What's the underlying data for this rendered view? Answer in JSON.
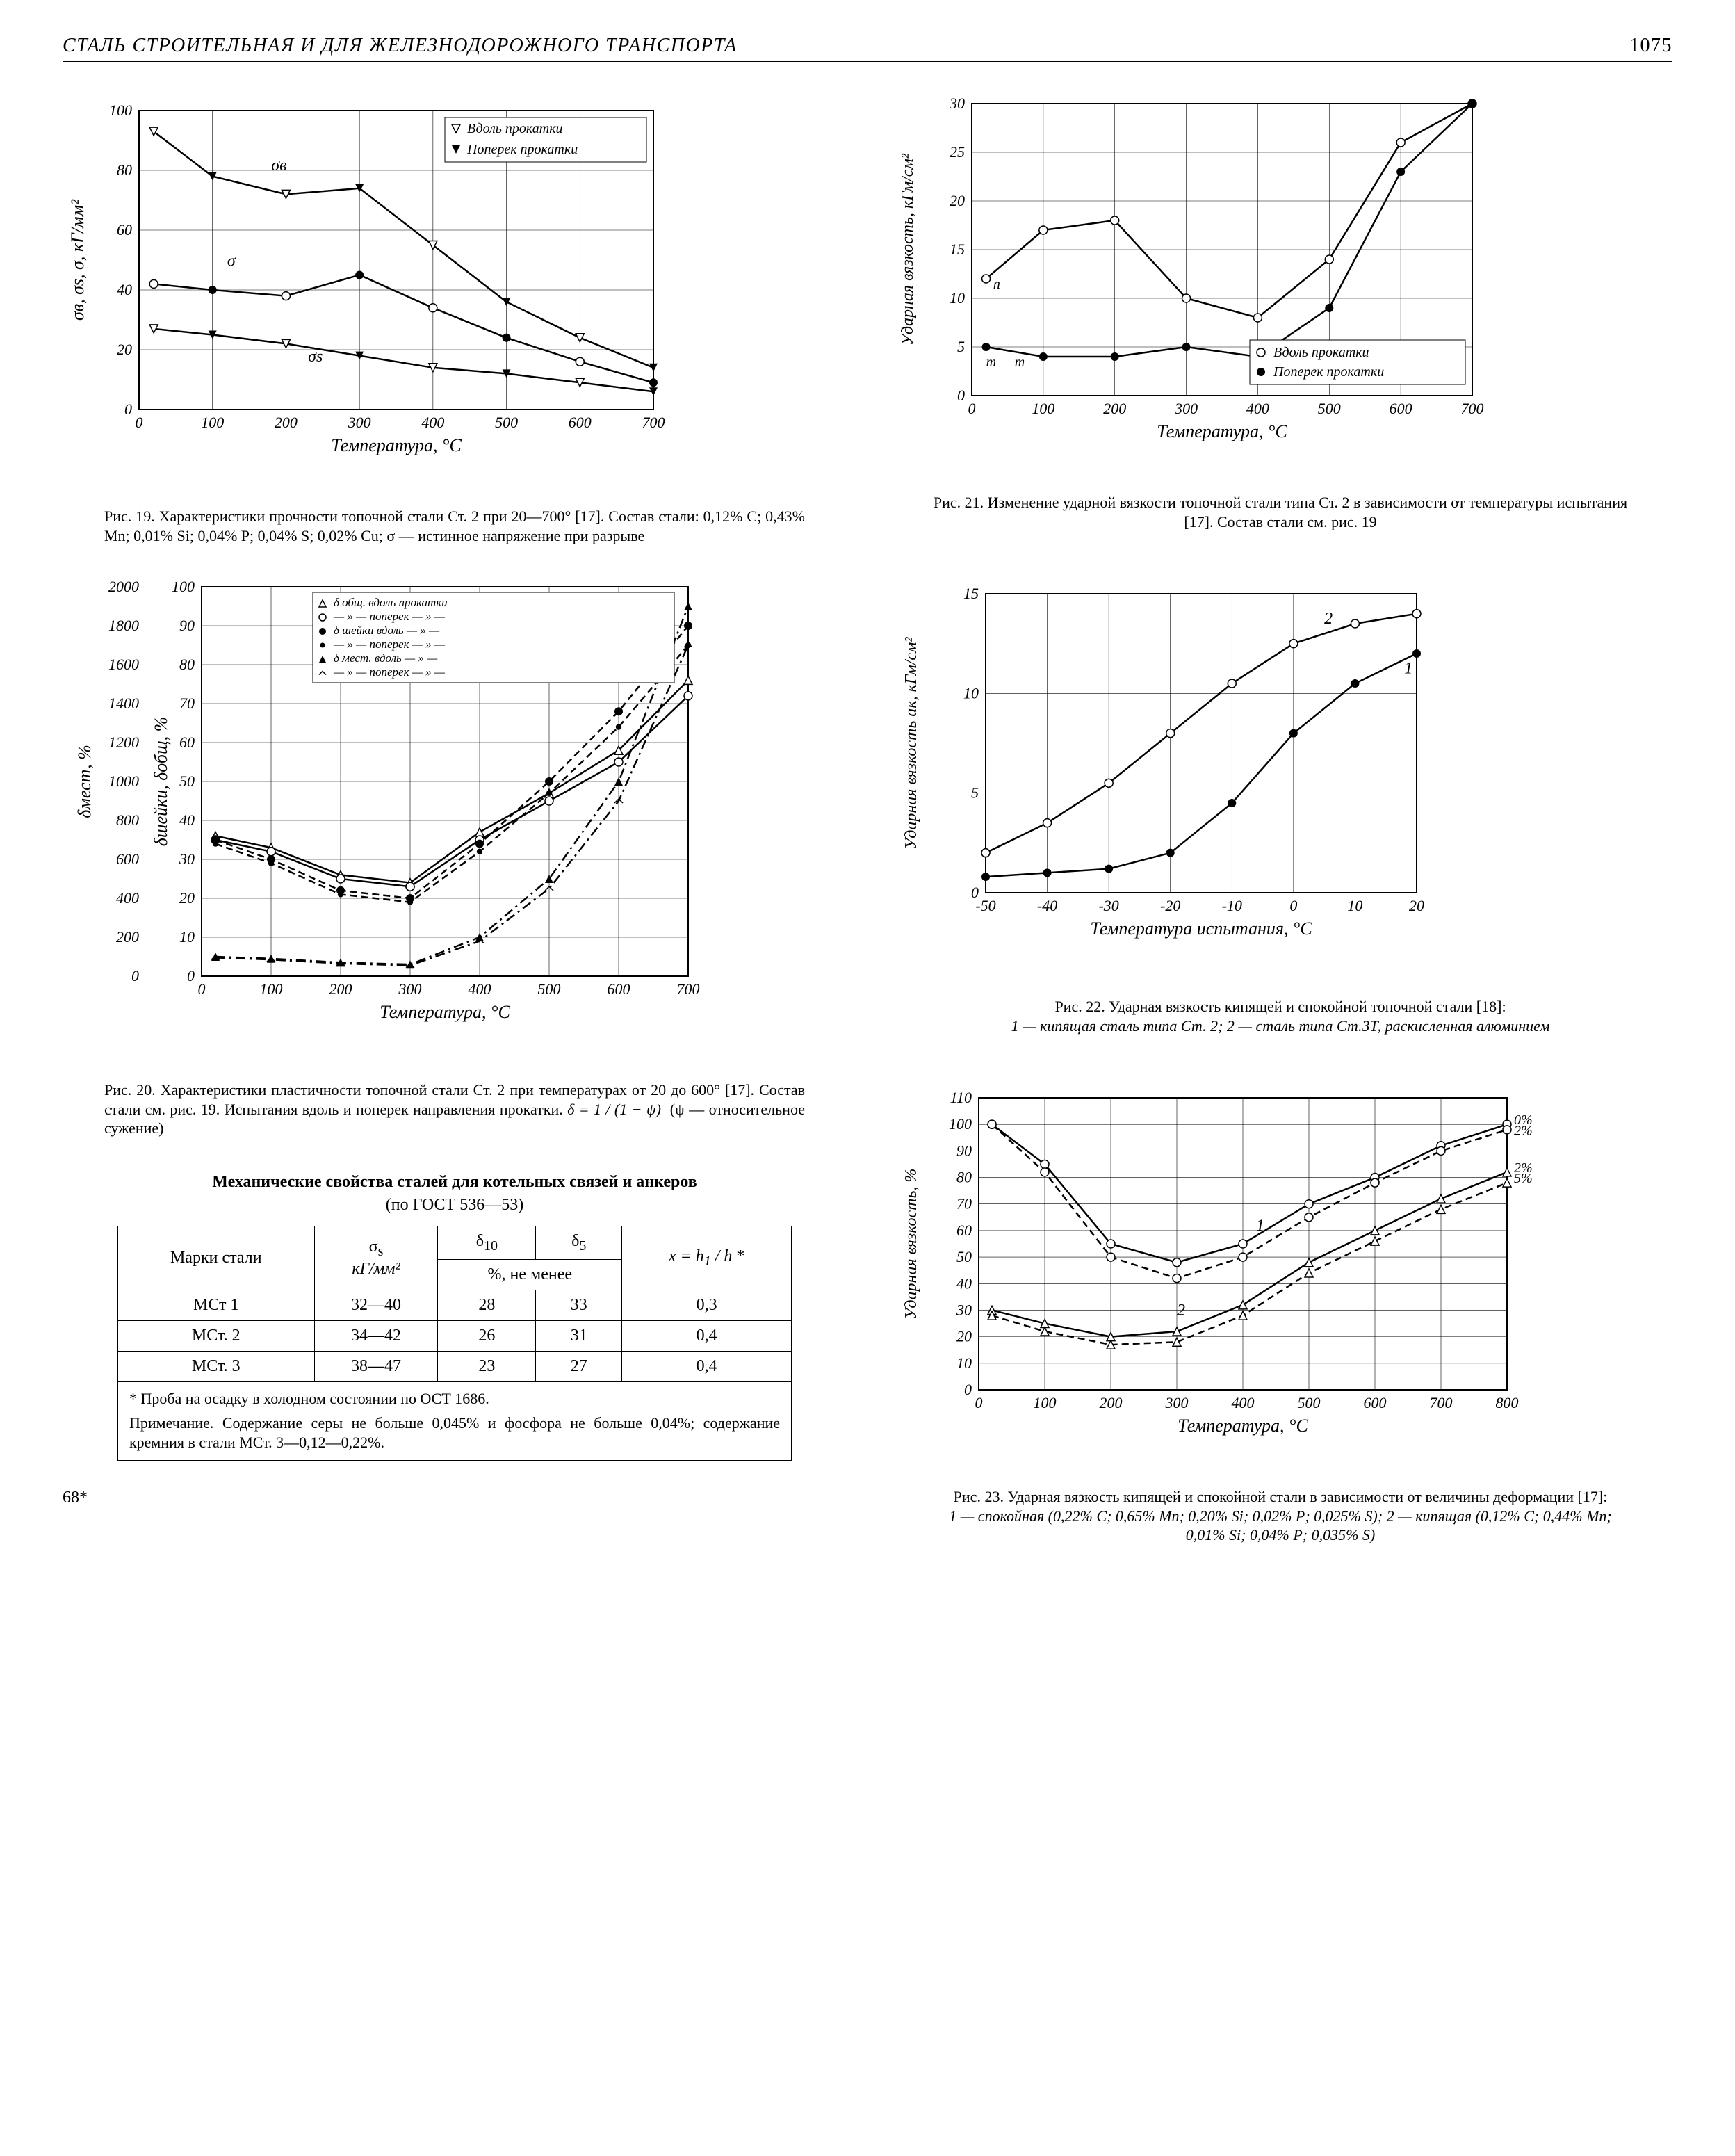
{
  "header": {
    "title": "СТАЛЬ СТРОИТЕЛЬНАЯ И ДЛЯ ЖЕЛЕЗНОДОРОЖНОГО ТРАНСПОРТА",
    "page_number": "1075"
  },
  "footer_sig": "68*",
  "fig19": {
    "type": "line",
    "x_label": "Температура, °С",
    "y_label": "σв, σs, σ, кГ/мм²",
    "xlim": [
      0,
      700
    ],
    "xtick_step": 100,
    "ylim": [
      0,
      100
    ],
    "ytick_step": 20,
    "legend": [
      "Вдоль прокатки",
      "Поперек прокатки"
    ],
    "legend_markers": [
      "triangle-down-open",
      "triangle-down-filled"
    ],
    "curve_labels": [
      "σв",
      "σ",
      "σs"
    ],
    "series_sigma_v": {
      "x": [
        20,
        100,
        200,
        300,
        400,
        500,
        600,
        700
      ],
      "y": [
        93,
        78,
        72,
        74,
        55,
        36,
        24,
        14
      ],
      "markers": "mixed"
    },
    "series_sigma": {
      "x": [
        20,
        100,
        200,
        300,
        400,
        500,
        600,
        700
      ],
      "y": [
        42,
        40,
        38,
        45,
        34,
        24,
        16,
        9
      ],
      "markers": "mixed"
    },
    "series_sigma_s": {
      "x": [
        20,
        100,
        200,
        300,
        400,
        500,
        600,
        700
      ],
      "y": [
        27,
        25,
        22,
        18,
        14,
        12,
        9,
        6
      ],
      "markers": "mixed"
    },
    "colors": {
      "line": "#000000",
      "bg": "#ffffff",
      "grid": "#000000"
    },
    "line_width": 2,
    "caption": "Рис. 19. Характеристики прочности топочной стали Ст. 2 при 20—700° [17]. Состав стали: 0,12% С; 0,43% Mn; 0,01% Si; 0,04% P; 0,04% S; 0,02% Cu; σ — истинное напряжение при разрыве"
  },
  "fig20": {
    "type": "line",
    "x_label": "Температура, °С",
    "y_left_label": "δмест, %",
    "y_right_label": "δшейки, δобщ, %",
    "xlim": [
      0,
      700
    ],
    "xtick_step": 100,
    "y_left": {
      "lim": [
        0,
        2000
      ],
      "tick_step": 200
    },
    "y_right": {
      "lim": [
        0,
        100
      ],
      "tick_step": 10
    },
    "legend": [
      "δ общ. вдоль прокатки",
      "— » — поперек — » —",
      "δ шейки вдоль — » —",
      "— » — поперек — » —",
      "δ мест. вдоль — » —",
      "— » — поперек — » —"
    ],
    "legend_markers": [
      "triangle-open",
      "circle-open",
      "circle-filled",
      "bullet",
      "triangle-filled",
      "caret"
    ],
    "series": [
      {
        "name": "d_obshch_vdol",
        "x": [
          20,
          100,
          200,
          300,
          400,
          500,
          600,
          700
        ],
        "y_right": [
          36,
          33,
          26,
          24,
          37,
          47,
          58,
          76
        ],
        "style": "solid",
        "marker": "triangle-open"
      },
      {
        "name": "d_obshch_poper",
        "x": [
          20,
          100,
          200,
          300,
          400,
          500,
          600,
          700
        ],
        "y_right": [
          35,
          32,
          25,
          23,
          35,
          45,
          55,
          72
        ],
        "style": "solid",
        "marker": "circle-open"
      },
      {
        "name": "d_sheiki_vdol",
        "x": [
          20,
          100,
          200,
          300,
          400,
          500,
          600,
          700
        ],
        "y_right": [
          35,
          30,
          22,
          20,
          34,
          50,
          68,
          90
        ],
        "style": "dashed",
        "marker": "circle-filled"
      },
      {
        "name": "d_sheiki_poper",
        "x": [
          20,
          100,
          200,
          300,
          400,
          500,
          600,
          700
        ],
        "y_right": [
          34,
          29,
          21,
          19,
          32,
          47,
          64,
          85
        ],
        "style": "dashed",
        "marker": "bullet"
      },
      {
        "name": "d_mest_vdol",
        "x": [
          20,
          100,
          200,
          300,
          400,
          500,
          600,
          700
        ],
        "y_left": [
          100,
          90,
          70,
          60,
          200,
          500,
          1000,
          1900
        ],
        "style": "dash-dot",
        "marker": "triangle-filled"
      },
      {
        "name": "d_mest_poper",
        "x": [
          20,
          100,
          200,
          300,
          400,
          500,
          600,
          700
        ],
        "y_left": [
          95,
          85,
          65,
          55,
          180,
          450,
          900,
          1700
        ],
        "style": "dash-dot",
        "marker": "caret"
      }
    ],
    "colors": {
      "line": "#000000",
      "bg": "#ffffff",
      "grid": "#000000"
    },
    "caption": "Рис. 20. Характеристики пластичности топочной стали Ст. 2 при температурах от 20 до 600° [17]. Состав стали см. рис. 19. Испытания вдоль и поперек направления прокатки. δ = 1 / (1 − ψ)   (ψ — относительное сужение)"
  },
  "fig21": {
    "type": "line",
    "x_label": "Температура, °С",
    "y_label": "Ударная вязкость, кГм/см²",
    "xlim": [
      0,
      700
    ],
    "xtick_step": 100,
    "ylim": [
      0,
      30
    ],
    "ytick_step": 5,
    "legend": [
      "Вдоль прокатки",
      "Поперек прокатки"
    ],
    "legend_markers": [
      "circle-open",
      "circle-filled"
    ],
    "series_along": {
      "x": [
        20,
        100,
        200,
        300,
        400,
        500,
        600,
        700
      ],
      "y": [
        12,
        17,
        18,
        10,
        8,
        14,
        26,
        30
      ]
    },
    "series_across": {
      "x": [
        20,
        100,
        200,
        300,
        400,
        500,
        600,
        700
      ],
      "y": [
        5,
        4,
        4,
        5,
        4,
        9,
        23,
        30
      ]
    },
    "extra_markers": {
      "label_m": "m",
      "label_t": "т"
    },
    "colors": {
      "line": "#000000",
      "bg": "#ffffff",
      "grid": "#000000"
    },
    "caption": "Рис. 21. Изменение ударной вязкости топочной стали типа Ст. 2 в зависимости от температуры испытания [17]. Состав стали см. рис. 19"
  },
  "fig22": {
    "type": "line",
    "x_label": "Температура испытания, °С",
    "y_label": "Ударная вязкость aк, кГм/см²",
    "xlim": [
      -50,
      20
    ],
    "xticks": [
      -50,
      -40,
      -30,
      -20,
      -10,
      0,
      10,
      20
    ],
    "ylim": [
      0,
      15
    ],
    "ytick_step": 5,
    "curve_labels": [
      "1",
      "2"
    ],
    "series_1": {
      "x": [
        -50,
        -40,
        -30,
        -20,
        -10,
        0,
        10,
        20
      ],
      "y": [
        0.8,
        1.0,
        1.2,
        2.0,
        4.5,
        8.0,
        10.5,
        12.0
      ],
      "marker": "circle-filled"
    },
    "series_2": {
      "x": [
        -50,
        -40,
        -30,
        -20,
        -10,
        0,
        10,
        20
      ],
      "y": [
        2.0,
        3.5,
        5.5,
        8.0,
        10.5,
        12.5,
        13.5,
        14.0
      ],
      "marker": "circle-open"
    },
    "colors": {
      "line": "#000000",
      "bg": "#ffffff",
      "grid": "#000000"
    },
    "caption": "Рис. 22. Ударная вязкость кипящей и спокойной топочной стали [18]:",
    "caption_items": "1 — кипящая сталь типа Ст. 2; 2 — сталь типа Ст.3Т, раскисленная алюминием"
  },
  "fig23": {
    "type": "line",
    "x_label": "Температура, °С",
    "y_label": "Ударная вязкость, %",
    "xlim": [
      0,
      800
    ],
    "xtick_step": 100,
    "ylim": [
      0,
      110
    ],
    "ytick_step": 10,
    "right_labels": [
      "0%",
      "2%",
      "2%",
      "5%"
    ],
    "curve_labels": [
      "1",
      "2"
    ],
    "series": [
      {
        "name": "1_0",
        "x": [
          20,
          100,
          200,
          300,
          400,
          500,
          600,
          700,
          800
        ],
        "y": [
          100,
          85,
          55,
          48,
          55,
          70,
          80,
          92,
          100
        ],
        "style": "solid",
        "marker": "circle-open"
      },
      {
        "name": "1_2",
        "x": [
          20,
          100,
          200,
          300,
          400,
          500,
          600,
          700,
          800
        ],
        "y": [
          100,
          82,
          50,
          42,
          50,
          65,
          78,
          90,
          98
        ],
        "style": "dashed",
        "marker": "circle-open"
      },
      {
        "name": "2_2",
        "x": [
          20,
          100,
          200,
          300,
          400,
          500,
          600,
          700,
          800
        ],
        "y": [
          30,
          25,
          20,
          22,
          32,
          48,
          60,
          72,
          82
        ],
        "style": "solid",
        "marker": "triangle-open"
      },
      {
        "name": "2_5",
        "x": [
          20,
          100,
          200,
          300,
          400,
          500,
          600,
          700,
          800
        ],
        "y": [
          28,
          22,
          17,
          18,
          28,
          44,
          56,
          68,
          78
        ],
        "style": "dashed",
        "marker": "triangle-open"
      }
    ],
    "colors": {
      "line": "#000000",
      "bg": "#ffffff",
      "grid": "#000000"
    },
    "caption": "Рис. 23. Ударная вязкость кипящей и спокойной стали в зависимости от величины деформации [17]:",
    "caption_items": "1 — спокойная (0,22% С; 0,65% Mn; 0,20% Si; 0,02% P; 0,025% S); 2 — кипящая (0,12% С; 0,44% Mn; 0,01% Si; 0,04% P; 0,035% S)"
  },
  "table": {
    "heading": "Механические свойства сталей для котельных связей и анкеров",
    "sub": "(по ГОСТ 536—53)",
    "columns": [
      "Марки стали",
      "σs кГ/мм²",
      "δ10",
      "δ5",
      "x = h1 / h *"
    ],
    "span_header": "%, не менее",
    "rows": [
      [
        "МСт 1",
        "32—40",
        "28",
        "33",
        "0,3"
      ],
      [
        "МСт. 2",
        "34—42",
        "26",
        "31",
        "0,4"
      ],
      [
        "МСт. 3",
        "38—47",
        "23",
        "27",
        "0,4"
      ]
    ],
    "note_star": "* Проба на осадку в холодном состоянии по ОСТ 1686.",
    "note_prim": "Примечание. Содержание серы не больше 0,045% и фосфора не больше 0,04%; содержание кремния в стали МСт. 3—0,12—0,22%."
  }
}
